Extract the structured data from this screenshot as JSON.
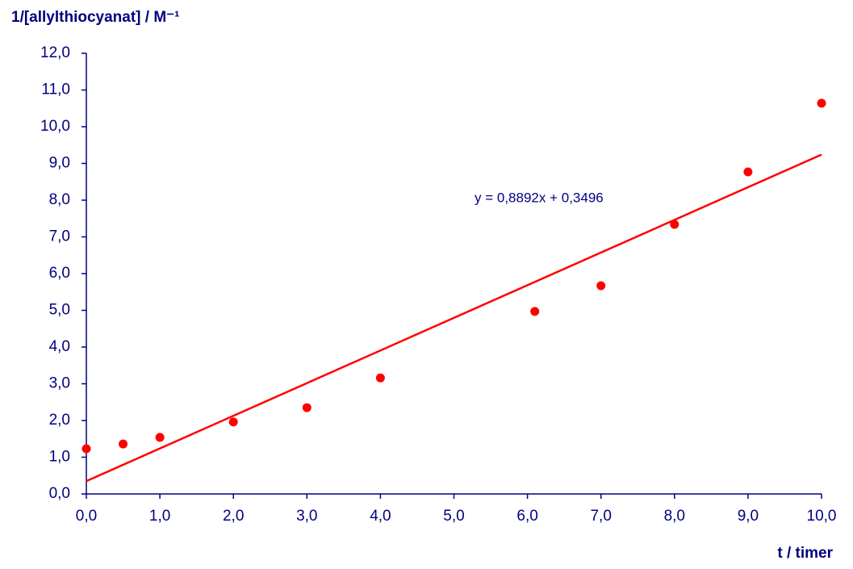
{
  "chart_data": {
    "type": "scatter",
    "y_label": "1/[allylthiocyanat]  / M⁻¹",
    "x_label": "t / timer",
    "x": [
      0,
      0.5,
      1,
      2,
      3,
      4,
      6.1,
      7,
      8,
      9,
      10
    ],
    "series": [
      {
        "color": "#ff0000",
        "values": [
          1.23,
          1.36,
          1.54,
          1.96,
          2.35,
          3.16,
          4.97,
          5.67,
          7.34,
          8.77,
          10.64
        ]
      }
    ],
    "trendline": {
      "slope": 0.8892,
      "intercept": 0.3496,
      "label": "y = 0,8892x + 0,3496",
      "color": "#ff0000"
    },
    "xlim": [
      0,
      10
    ],
    "ylim": [
      0,
      12
    ],
    "xticks": [
      {
        "value": 0,
        "label": "0,0"
      },
      {
        "value": 1,
        "label": "1,0"
      },
      {
        "value": 2,
        "label": "2,0"
      },
      {
        "value": 3,
        "label": "3,0"
      },
      {
        "value": 4,
        "label": "4,0"
      },
      {
        "value": 5,
        "label": "5,0"
      },
      {
        "value": 6,
        "label": "6,0"
      },
      {
        "value": 7,
        "label": "7,0"
      },
      {
        "value": 8,
        "label": "8,0"
      },
      {
        "value": 9,
        "label": "9,0"
      },
      {
        "value": 10,
        "label": "10,0"
      }
    ],
    "yticks": [
      {
        "value": 0,
        "label": "0,0"
      },
      {
        "value": 1,
        "label": "1,0"
      },
      {
        "value": 2,
        "label": "2,0"
      },
      {
        "value": 3,
        "label": "3,0"
      },
      {
        "value": 4,
        "label": "4,0"
      },
      {
        "value": 5,
        "label": "5,0"
      },
      {
        "value": 6,
        "label": "6,0"
      },
      {
        "value": 7,
        "label": "7,0"
      },
      {
        "value": 8,
        "label": "8,0"
      },
      {
        "value": 9,
        "label": "9,0"
      },
      {
        "value": 10,
        "label": "10,0"
      },
      {
        "value": 11,
        "label": "11,0"
      },
      {
        "value": 12,
        "label": "12,0"
      }
    ],
    "grid": false
  }
}
